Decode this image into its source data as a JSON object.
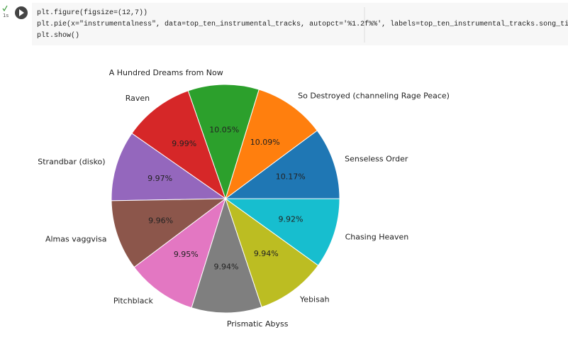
{
  "cell": {
    "exec_time": "1s",
    "code": [
      "plt.figure(figsize=(12,7))",
      "plt.pie(x=\"instrumentalness\", data=top_ten_instrumental_tracks, autopct='%1.2f%%', labels=top_ten_instrumental_tracks.song_title)",
      "plt.show()"
    ]
  },
  "chart_data": {
    "type": "pie",
    "categories": [
      "Senseless Order",
      "So Destroyed (channeling Rage Peace)",
      "A Hundred Dreams from Now",
      "Raven",
      "Strandbar (disko)",
      "Almas vaggvisa",
      "Pitchblack",
      "Prismatic Abyss",
      "Yebisah",
      "Chasing Heaven"
    ],
    "values": [
      10.17,
      10.09,
      10.05,
      9.99,
      9.97,
      9.96,
      9.95,
      9.94,
      9.94,
      9.92
    ],
    "value_labels": [
      "10.17%",
      "10.09%",
      "10.05%",
      "9.99%",
      "9.97%",
      "9.96%",
      "9.95%",
      "9.94%",
      "9.94%",
      "9.92%"
    ],
    "colors": [
      "#1f77b4",
      "#ff7f0e",
      "#2ca02c",
      "#d62728",
      "#9467bd",
      "#8c564b",
      "#e377c2",
      "#7f7f7f",
      "#bcbd22",
      "#17becf"
    ]
  }
}
